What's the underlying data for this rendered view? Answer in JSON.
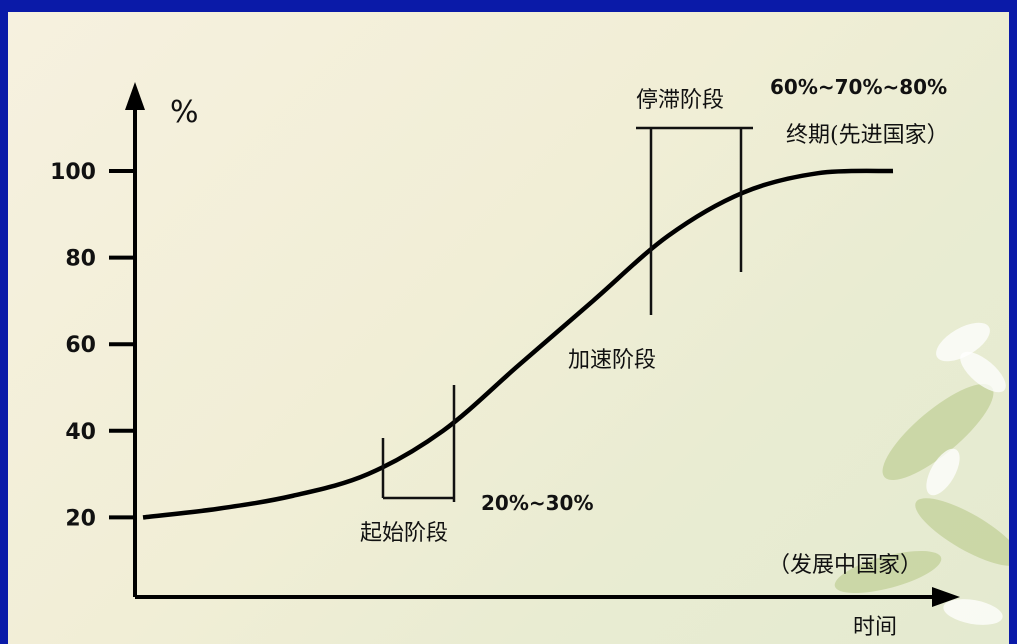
{
  "chart_data": {
    "type": "line",
    "ylabel": "%",
    "xlabel": "时间",
    "ylim": [
      0,
      110
    ],
    "yticks": [
      "20",
      "40",
      "60",
      "80",
      "100"
    ],
    "ytick_values": [
      20,
      40,
      60,
      80,
      100
    ],
    "grid": false,
    "series": [
      {
        "x": [
          0,
          10,
          20,
          30,
          40,
          50,
          60,
          70,
          80,
          90,
          100
        ],
        "values": [
          20,
          22,
          25,
          30,
          40,
          55,
          70,
          85,
          95,
          99.5,
          100
        ]
      }
    ],
    "stages": [
      {
        "label": "起始阶段",
        "note": "20%~30%"
      },
      {
        "label": "加速阶段"
      },
      {
        "label": "停滞阶段",
        "note": "60%~70%~80%"
      }
    ],
    "annotations": {
      "end_stage": "终期(先进国家）",
      "developing": "（发展中国家）"
    }
  }
}
